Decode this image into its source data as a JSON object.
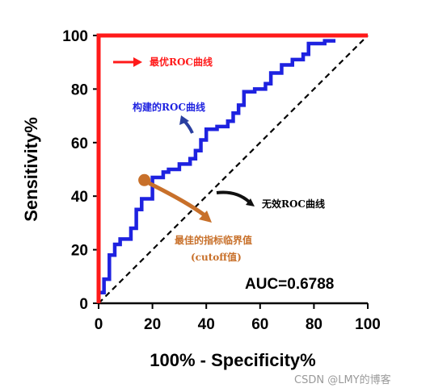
{
  "chart_data": {
    "type": "line",
    "xlabel": "100% - Specificity%",
    "ylabel": "Sensitivity%",
    "xlim": [
      0,
      100
    ],
    "ylim": [
      0,
      100
    ],
    "xticks": [
      "0",
      "20",
      "40",
      "60",
      "80",
      "100"
    ],
    "yticks": [
      "0",
      "20",
      "40",
      "60",
      "80",
      "100"
    ],
    "grid": false,
    "series": [
      {
        "name": "最优ROC曲线",
        "color": "#ff1a1a",
        "x": [
          0,
          0,
          100
        ],
        "y": [
          0,
          100,
          100
        ]
      },
      {
        "name": "构建的ROC曲线",
        "color": "#1e22e0",
        "x": [
          0,
          0,
          2,
          2,
          4,
          4,
          6,
          6,
          8,
          8,
          12,
          12,
          14,
          14,
          16,
          16,
          20,
          20,
          24,
          24,
          26,
          26,
          30,
          30,
          34,
          34,
          36,
          36,
          38,
          38,
          40,
          40,
          44,
          44,
          48,
          48,
          50,
          50,
          52,
          52,
          54,
          54,
          58,
          58,
          62,
          62,
          64,
          64,
          68,
          68,
          72,
          72,
          76,
          76,
          78,
          78,
          84,
          84,
          88
        ],
        "y": [
          0,
          4,
          4,
          9,
          9,
          18,
          18,
          22,
          22,
          24,
          24,
          28,
          28,
          35,
          35,
          39,
          39,
          47,
          47,
          49,
          49,
          50,
          50,
          52,
          52,
          54,
          54,
          57,
          57,
          61,
          61,
          65,
          65,
          66,
          66,
          68,
          68,
          71,
          71,
          74,
          74,
          79,
          79,
          80,
          80,
          82,
          82,
          86,
          86,
          89,
          89,
          91,
          91,
          93,
          93,
          97,
          97,
          98,
          98
        ]
      },
      {
        "name": "无效ROC曲线",
        "color": "#000000",
        "x": [
          0,
          100
        ],
        "y": [
          0,
          100
        ]
      }
    ],
    "cutoff_point": {
      "label": "最佳的指标临界值",
      "sublabel": "(cutoff值)",
      "x": 17,
      "y": 46,
      "color": "#c8702a"
    },
    "annotations": [
      {
        "text": "最优ROC曲线",
        "color": "#ff1a1a"
      },
      {
        "text": "构建的ROC曲线",
        "color": "#1e22e0"
      },
      {
        "text": "无效ROC曲线",
        "color": "#000000"
      },
      {
        "text": "最佳的指标临界值",
        "color": "#c8702a"
      },
      {
        "text": "(cutoff值)",
        "color": "#c8702a"
      }
    ],
    "auc_text": "AUC=0.6788"
  },
  "watermark": "CSDN @LMY的博客"
}
